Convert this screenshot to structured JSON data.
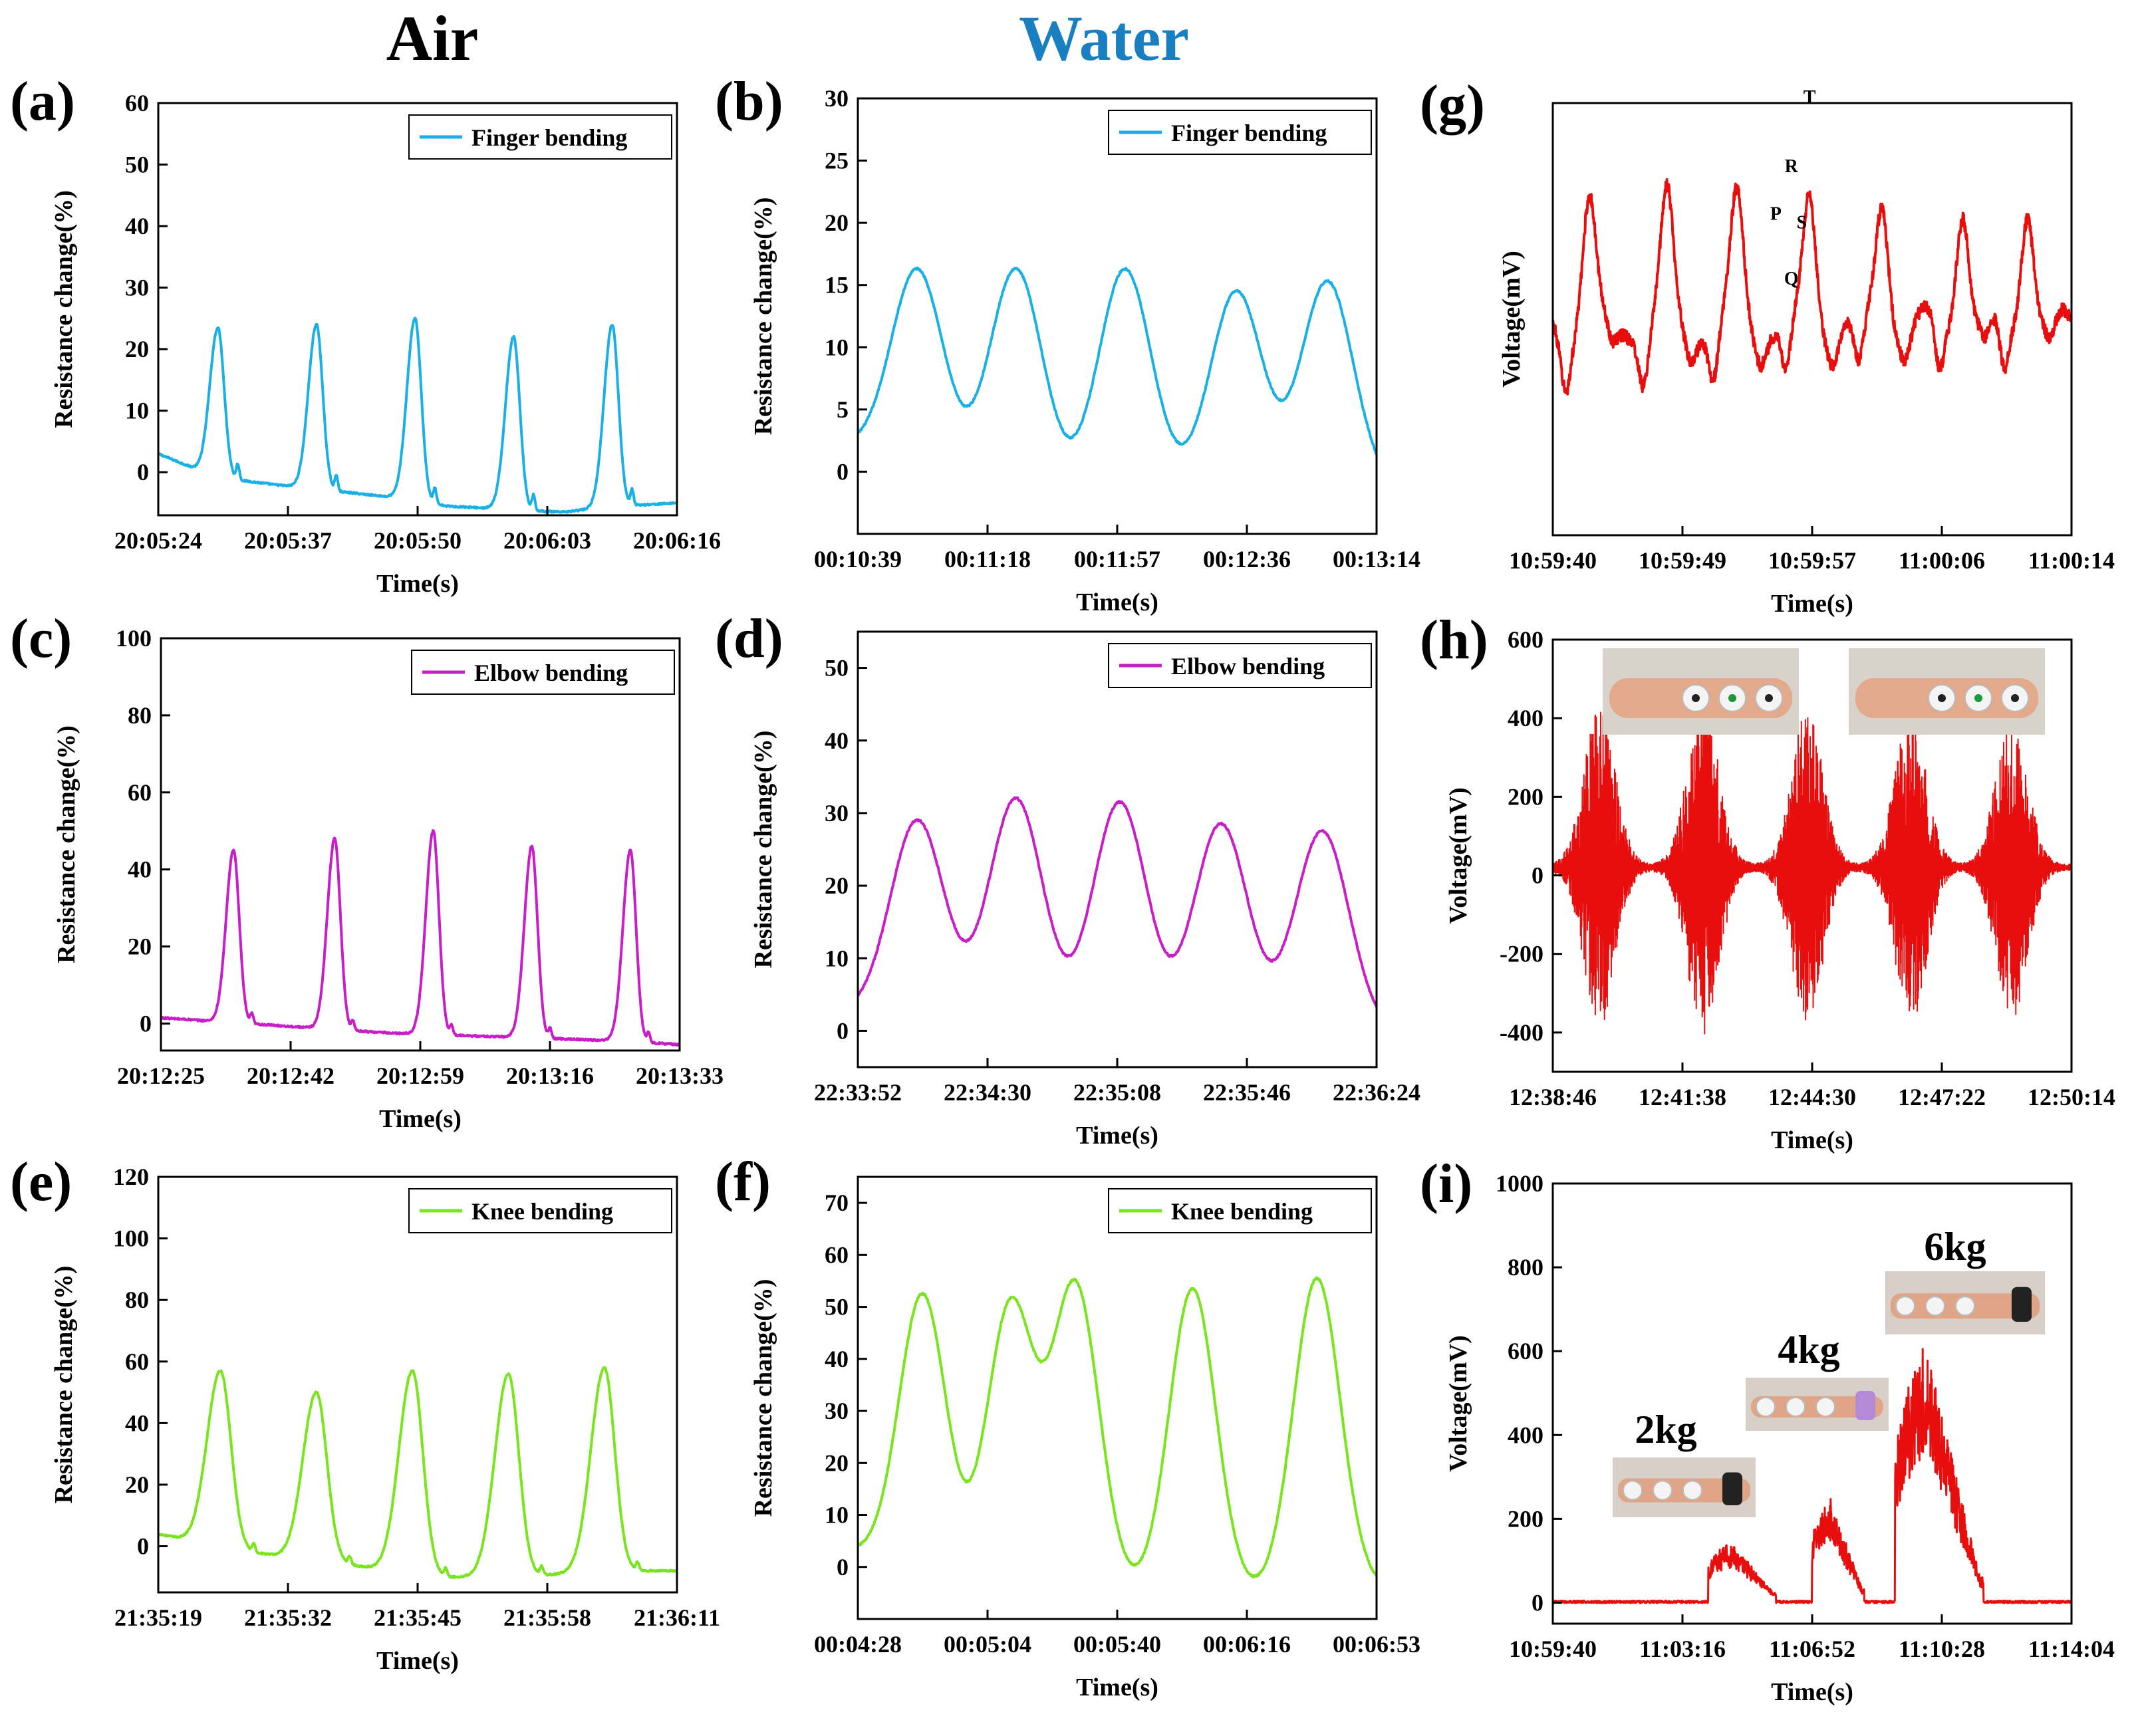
{
  "column_headers": {
    "air": {
      "text": "Air",
      "color": "#000000"
    },
    "water": {
      "text": "Water",
      "color": "#1a7fc1"
    }
  },
  "chart_data": [
    {
      "id": "a",
      "label": "(a)",
      "type": "line",
      "kind": "peaks",
      "legend": "Finger bending",
      "color": "#1ab0e6",
      "xlabel": "Time(s)",
      "ylabel": "Resistance change(%)",
      "ylim": [
        -7,
        60
      ],
      "yticks": [
        0,
        10,
        20,
        30,
        40,
        50,
        60
      ],
      "xticks": [
        "20:05:24",
        "20:05:37",
        "20:05:50",
        "20:06:03",
        "20:06:16"
      ],
      "baseline": [
        3,
        -0.8,
        -2,
        -3,
        -4,
        -5.5,
        -6,
        -6.5,
        -5.5,
        -5
      ],
      "peaks": [
        {
          "x": 0.115,
          "h": 23.5
        },
        {
          "x": 0.305,
          "h": 24
        },
        {
          "x": 0.495,
          "h": 25
        },
        {
          "x": 0.685,
          "h": 22
        },
        {
          "x": 0.875,
          "h": 24
        }
      ],
      "peak_width": 0.012
    },
    {
      "id": "b",
      "label": "(b)",
      "type": "line",
      "kind": "waves",
      "legend": "Finger bending",
      "color": "#1ab0e6",
      "xlabel": "Time(s)",
      "ylabel": "Resistance change(%)",
      "ylim": [
        -5,
        30
      ],
      "yticks": [
        0,
        5,
        10,
        15,
        20,
        25,
        30
      ],
      "xticks": [
        "00:10:39",
        "00:11:18",
        "00:11:57",
        "00:12:36",
        "00:13:14"
      ],
      "baseline": [
        2,
        0,
        -1,
        -1,
        -1.2,
        -1.3
      ],
      "peaks": [
        {
          "x": 0.115,
          "h": 16.3
        },
        {
          "x": 0.305,
          "h": 16.3
        },
        {
          "x": 0.515,
          "h": 16.3
        },
        {
          "x": 0.73,
          "h": 14.5
        },
        {
          "x": 0.905,
          "h": 15.3
        }
      ],
      "peak_width": 0.05
    },
    {
      "id": "c",
      "label": "(c)",
      "type": "line",
      "kind": "peaks",
      "legend": "Elbow bending",
      "color": "#c81ec8",
      "xlabel": "Time(s)",
      "ylabel": "Resistance change(%)",
      "ylim": [
        -7,
        100
      ],
      "yticks": [
        0,
        20,
        40,
        60,
        80,
        100
      ],
      "xticks": [
        "20:12:25",
        "20:12:42",
        "20:12:59",
        "20:13:16",
        "20:13:33"
      ],
      "baseline": [
        1.5,
        0.5,
        -0.5,
        -1.5,
        -2.5,
        -3,
        -3.5,
        -4,
        -4.5,
        -5.5
      ],
      "peaks": [
        {
          "x": 0.14,
          "h": 45
        },
        {
          "x": 0.335,
          "h": 48
        },
        {
          "x": 0.525,
          "h": 50
        },
        {
          "x": 0.715,
          "h": 46
        },
        {
          "x": 0.905,
          "h": 45
        }
      ],
      "peak_width": 0.011
    },
    {
      "id": "d",
      "label": "(d)",
      "type": "line",
      "kind": "waves",
      "legend": "Elbow bending",
      "color": "#c81ec8",
      "xlabel": "Time(s)",
      "ylabel": "Resistance change(%)",
      "ylim": [
        -5,
        55
      ],
      "yticks": [
        0,
        10,
        20,
        30,
        40,
        50
      ],
      "xticks": [
        "22:33:52",
        "22:34:30",
        "22:35:08",
        "22:35:46",
        "22:36:24"
      ],
      "baseline": [
        2.5,
        1.5,
        0.5,
        0,
        0,
        -0.3
      ],
      "peaks": [
        {
          "x": 0.115,
          "h": 29
        },
        {
          "x": 0.305,
          "h": 32
        },
        {
          "x": 0.505,
          "h": 31.5
        },
        {
          "x": 0.7,
          "h": 28.5
        },
        {
          "x": 0.895,
          "h": 27.5
        }
      ],
      "peak_width": 0.052
    },
    {
      "id": "e",
      "label": "(e)",
      "type": "line",
      "kind": "peaks",
      "legend": "Knee bending",
      "color": "#7ae41e",
      "xlabel": "Time(s)",
      "ylabel": "Resistance change(%)",
      "ylim": [
        -15,
        120
      ],
      "yticks": [
        0,
        20,
        40,
        60,
        80,
        100,
        120
      ],
      "xticks": [
        "21:35:19",
        "21:35:32",
        "21:35:45",
        "21:35:58",
        "21:36:11"
      ],
      "baseline": [
        4,
        0,
        -3,
        -5,
        -8,
        -10,
        -10,
        -9,
        -8,
        -8
      ],
      "peaks": [
        {
          "x": 0.12,
          "h": 57
        },
        {
          "x": 0.305,
          "h": 50
        },
        {
          "x": 0.49,
          "h": 57
        },
        {
          "x": 0.675,
          "h": 56
        },
        {
          "x": 0.86,
          "h": 58
        }
      ],
      "peak_width": 0.02
    },
    {
      "id": "f",
      "label": "(f)",
      "type": "line",
      "kind": "waves",
      "legend": "Knee bending",
      "color": "#7ae41e",
      "xlabel": "Time(s)",
      "ylabel": "Resistance change(%)",
      "ylim": [
        -10,
        75
      ],
      "yticks": [
        0,
        10,
        20,
        30,
        40,
        50,
        60,
        70
      ],
      "xticks": [
        "00:04:28",
        "00:05:04",
        "00:05:40",
        "00:06:16",
        "00:06:53"
      ],
      "baseline": [
        3,
        -1,
        -2,
        -6,
        -5,
        -4
      ],
      "peaks": [
        {
          "x": 0.125,
          "h": 52.5
        },
        {
          "x": 0.295,
          "h": 50.5
        },
        {
          "x": 0.42,
          "h": 54
        },
        {
          "x": 0.645,
          "h": 53.5
        },
        {
          "x": 0.885,
          "h": 55.5
        }
      ],
      "peak_width": 0.045
    },
    {
      "id": "g",
      "label": "(g)",
      "type": "line",
      "kind": "ecg",
      "color": "#e80e0e",
      "xlabel": "Time(s)",
      "ylabel": "Voltage(mV)",
      "ylim": [
        0,
        100
      ],
      "xticks": [
        "10:59:40",
        "10:59:49",
        "10:59:57",
        "11:00:06",
        "11:00:14"
      ],
      "ecg_peaks": [
        0.07,
        0.22,
        0.355,
        0.495,
        0.635,
        0.79,
        0.915
      ],
      "wave_labels": [
        "P",
        "R",
        "S",
        "T",
        "Q"
      ]
    },
    {
      "id": "h",
      "label": "(h)",
      "type": "line",
      "kind": "emg",
      "color": "#e80e0e",
      "xlabel": "Time(s)",
      "ylabel": "Voltage(mV)",
      "ylim": [
        -500,
        600
      ],
      "yticks": [
        -400,
        -200,
        0,
        200,
        400,
        600
      ],
      "xticks": [
        "12:38:46",
        "12:41:38",
        "12:44:30",
        "12:47:22",
        "12:50:14"
      ],
      "bursts": [
        {
          "x": 0.09,
          "amp": 400
        },
        {
          "x": 0.29,
          "amp": 420
        },
        {
          "x": 0.49,
          "amp": 400
        },
        {
          "x": 0.69,
          "amp": 400
        },
        {
          "x": 0.885,
          "amp": 380
        }
      ]
    },
    {
      "id": "i",
      "label": "(i)",
      "type": "line",
      "kind": "load",
      "color": "#e80e0e",
      "xlabel": "Time(s)",
      "ylabel": "Voltage(mV)",
      "ylim": [
        -50,
        1000
      ],
      "yticks": [
        0,
        200,
        400,
        600,
        800,
        1000
      ],
      "xticks": [
        "10:59:40",
        "11:03:16",
        "11:06:52",
        "11:10:28",
        "11:14:04"
      ],
      "segments": [
        {
          "start": 0.3,
          "end": 0.43,
          "amp": 130
        },
        {
          "start": 0.5,
          "end": 0.6,
          "amp": 240
        },
        {
          "start": 0.66,
          "end": 0.83,
          "amp": 600
        }
      ],
      "weight_labels": [
        "2kg",
        "4kg",
        "6kg"
      ]
    }
  ]
}
